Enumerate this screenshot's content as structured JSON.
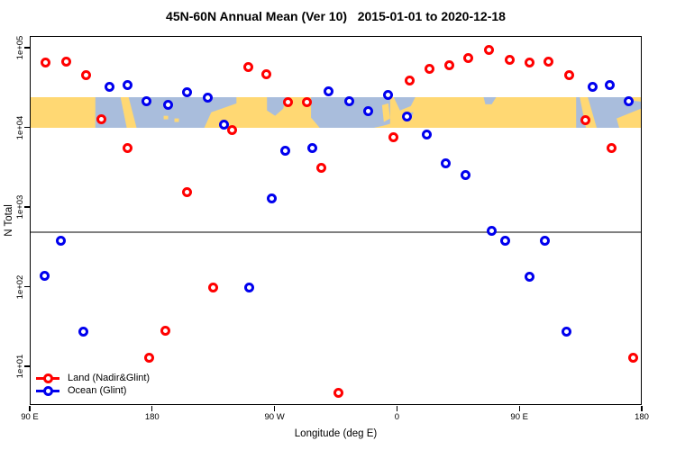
{
  "chart_data": {
    "type": "scatter",
    "title": "45N-60N Annual Mean (Ver 10)   2015-01-01 to 2020-12-18",
    "xlabel": "Longitude (deg E)",
    "ylabel": "N Total",
    "x_axis": {
      "lim_deg_e_continuous": [
        90,
        540
      ],
      "note": "longitude axis wraps eastward: 90E > 180 > 90W > 0 > 90E > 180",
      "ticks": [
        {
          "lon": 90,
          "label": "90 E"
        },
        {
          "lon": 180,
          "label": "180"
        },
        {
          "lon": 270,
          "label": "90 W"
        },
        {
          "lon": 360,
          "label": "0"
        },
        {
          "lon": 450,
          "label": "90 E"
        },
        {
          "lon": 540,
          "label": "180"
        }
      ]
    },
    "y_axis": {
      "scale": "log10",
      "lim": [
        3.3,
        140000
      ],
      "ticks": [
        {
          "value": 10,
          "label": "1e+01"
        },
        {
          "value": 100,
          "label": "1e+02"
        },
        {
          "value": 1000,
          "label": "1e+03"
        },
        {
          "value": 10000,
          "label": "1e+04"
        },
        {
          "value": 100000,
          "label": "1e+05"
        }
      ]
    },
    "reference_line": {
      "value": 500,
      "color": "#808080"
    },
    "map_band": {
      "description": "45N-60N land/ocean world-map strip",
      "value_min": 10000,
      "value_max": 24500,
      "land_color": "#FFD873",
      "ocean_color": "#A9BDDC"
    },
    "legend": {
      "position": "bottom-left",
      "items": [
        {
          "label": "Land (Nadir&Glint)",
          "color": "#FF0000"
        },
        {
          "label": "Ocean (Glint)",
          "color": "#0000EE"
        }
      ]
    },
    "series": [
      {
        "name": "Land (Nadir&Glint)",
        "color": "#FF0000",
        "marker": "open-circle",
        "points": [
          {
            "lon": 101,
            "n": 66000
          },
          {
            "lon": 116,
            "n": 68000
          },
          {
            "lon": 131,
            "n": 47000
          },
          {
            "lon": 142,
            "n": 13000
          },
          {
            "lon": 161,
            "n": 5700
          },
          {
            "lon": 177,
            "n": 13
          },
          {
            "lon": 189,
            "n": 29
          },
          {
            "lon": 205,
            "n": 1560
          },
          {
            "lon": 224,
            "n": 100
          },
          {
            "lon": 238,
            "n": 9400
          },
          {
            "lon": 250,
            "n": 58000
          },
          {
            "lon": 263,
            "n": 48000
          },
          {
            "lon": 279,
            "n": 21500
          },
          {
            "lon": 293,
            "n": 21000
          },
          {
            "lon": 304,
            "n": 3200
          },
          {
            "lon": 316,
            "n": 4.8
          },
          {
            "lon": 357,
            "n": 7800
          },
          {
            "lon": 369,
            "n": 40000
          },
          {
            "lon": 383,
            "n": 55000
          },
          {
            "lon": 398,
            "n": 61000
          },
          {
            "lon": 412,
            "n": 77000
          },
          {
            "lon": 427,
            "n": 95000
          },
          {
            "lon": 442,
            "n": 73000
          },
          {
            "lon": 457,
            "n": 66000
          },
          {
            "lon": 471,
            "n": 68000
          },
          {
            "lon": 486,
            "n": 47000
          },
          {
            "lon": 498,
            "n": 12800
          },
          {
            "lon": 517,
            "n": 5700
          },
          {
            "lon": 533,
            "n": 13
          }
        ]
      },
      {
        "name": "Ocean (Glint)",
        "color": "#0000EE",
        "marker": "open-circle",
        "points": [
          {
            "lon": 100,
            "n": 140
          },
          {
            "lon": 112,
            "n": 390
          },
          {
            "lon": 129,
            "n": 28
          },
          {
            "lon": 148,
            "n": 33000
          },
          {
            "lon": 161,
            "n": 35000
          },
          {
            "lon": 175,
            "n": 22000
          },
          {
            "lon": 191,
            "n": 19500
          },
          {
            "lon": 205,
            "n": 28000
          },
          {
            "lon": 220,
            "n": 24500
          },
          {
            "lon": 232,
            "n": 11200
          },
          {
            "lon": 251,
            "n": 100
          },
          {
            "lon": 267,
            "n": 1300
          },
          {
            "lon": 277,
            "n": 5200
          },
          {
            "lon": 297,
            "n": 5600
          },
          {
            "lon": 309,
            "n": 29000
          },
          {
            "lon": 324,
            "n": 22000
          },
          {
            "lon": 338,
            "n": 16600
          },
          {
            "lon": 353,
            "n": 26500
          },
          {
            "lon": 367,
            "n": 14000
          },
          {
            "lon": 381,
            "n": 8400
          },
          {
            "lon": 395,
            "n": 3600
          },
          {
            "lon": 410,
            "n": 2600
          },
          {
            "lon": 429,
            "n": 520
          },
          {
            "lon": 439,
            "n": 390
          },
          {
            "lon": 457,
            "n": 135
          },
          {
            "lon": 468,
            "n": 390
          },
          {
            "lon": 484,
            "n": 28
          },
          {
            "lon": 503,
            "n": 33000
          },
          {
            "lon": 516,
            "n": 35000
          },
          {
            "lon": 530,
            "n": 22000
          }
        ]
      }
    ]
  }
}
